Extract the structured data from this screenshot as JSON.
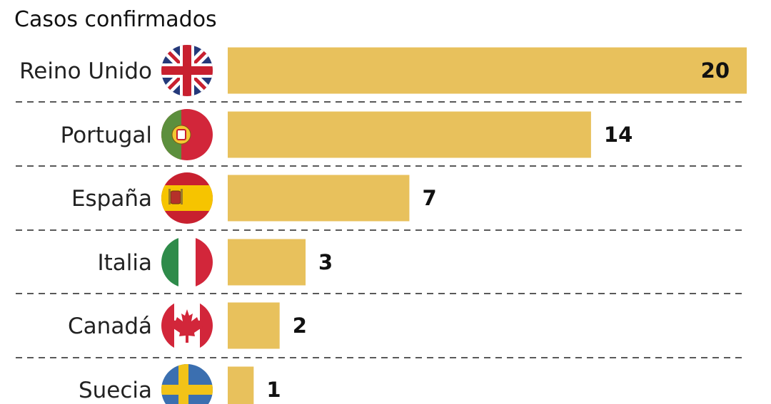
{
  "chart_data": {
    "type": "bar",
    "orientation": "horizontal",
    "title": "Casos confirmados",
    "categories": [
      "Reino Unido",
      "Portugal",
      "España",
      "Italia",
      "Canadá",
      "Suecia"
    ],
    "values": [
      20,
      14,
      7,
      3,
      2,
      1
    ],
    "xlim": [
      0,
      20
    ],
    "grid": false,
    "bar_color": "#E8C15C",
    "value_labels": "end",
    "flags": [
      "uk-flag-icon",
      "portugal-flag-icon",
      "spain-flag-icon",
      "italy-flag-icon",
      "canada-flag-icon",
      "sweden-flag-icon"
    ]
  }
}
